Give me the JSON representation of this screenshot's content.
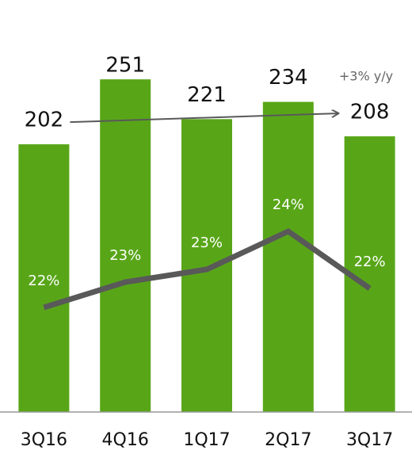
{
  "chart_data": {
    "type": "bar",
    "categories": [
      "3Q16",
      "4Q16",
      "1Q17",
      "2Q17",
      "3Q17"
    ],
    "series": [
      {
        "type": "bar",
        "color": "#58a618",
        "values": [
          202,
          251,
          221,
          234,
          208
        ]
      },
      {
        "type": "line",
        "axis": "y2",
        "color": "#595959",
        "values": [
          21.8,
          22.6,
          23.0,
          24.2,
          22.4
        ],
        "value_labels": [
          "22%",
          "23%",
          "23%",
          "24%",
          "22%"
        ]
      }
    ],
    "ylim": [
      0,
      275
    ],
    "y2lim": [
      18.5,
      30
    ],
    "annotation": "+3% y/y"
  }
}
